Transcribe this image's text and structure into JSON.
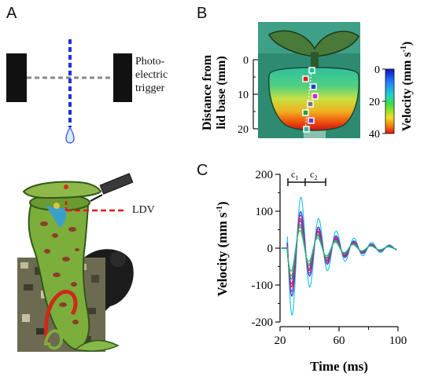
{
  "figure": {
    "panel_a": {
      "letter": "A",
      "trigger_label_lines": [
        "Photo-",
        "electric",
        "trigger"
      ],
      "ldv_label": "LDV"
    },
    "panel_b": {
      "letter": "B",
      "ylabel_lines": [
        "Distance from",
        "lid base (mm)"
      ],
      "y_ticks": [
        "0",
        "10",
        "20"
      ],
      "colorbar_label": "Velocity (mm s",
      "colorbar_label_sup": "-1",
      "colorbar_label_end": ")",
      "colorbar_ticks": [
        "0",
        "20",
        "40"
      ],
      "marker_colors": [
        "#16c08c",
        "#d81f1f",
        "#1f3fd0",
        "#c42cc2",
        "#7a7a7a",
        "#20a040",
        "#7d2fd0",
        "#2bb5a0"
      ]
    },
    "panel_c": {
      "letter": "C",
      "c1_label": "c",
      "c1_sub": "1",
      "c2_label": "c",
      "c2_sub": "2"
    }
  },
  "chart_data": {
    "type": "line",
    "xlabel": "Time (ms)",
    "ylabel_main": "Velocity (mm s",
    "ylabel_sup": "-1",
    "ylabel_end": ")",
    "xlim": [
      20,
      100
    ],
    "ylim": [
      -200,
      200
    ],
    "x_ticks": [
      20,
      60,
      100
    ],
    "y_ticks": [
      200,
      100,
      0,
      -100,
      -200
    ],
    "impact_time": 25,
    "period_ms": 12,
    "decay_ms": 22,
    "series": [
      {
        "color": "#29c3e6",
        "amplitude": 210
      },
      {
        "color": "#1f3fd0",
        "amplitude": 150
      },
      {
        "color": "#c42cc2",
        "amplitude": 135
      },
      {
        "color": "#d81f1f",
        "amplitude": 120
      },
      {
        "color": "#7d2fd0",
        "amplitude": 110
      },
      {
        "color": "#20a040",
        "amplitude": 95
      },
      {
        "color": "#7a7a7a",
        "amplitude": 85
      },
      {
        "color": "#16c08c",
        "amplitude": 70
      }
    ]
  }
}
